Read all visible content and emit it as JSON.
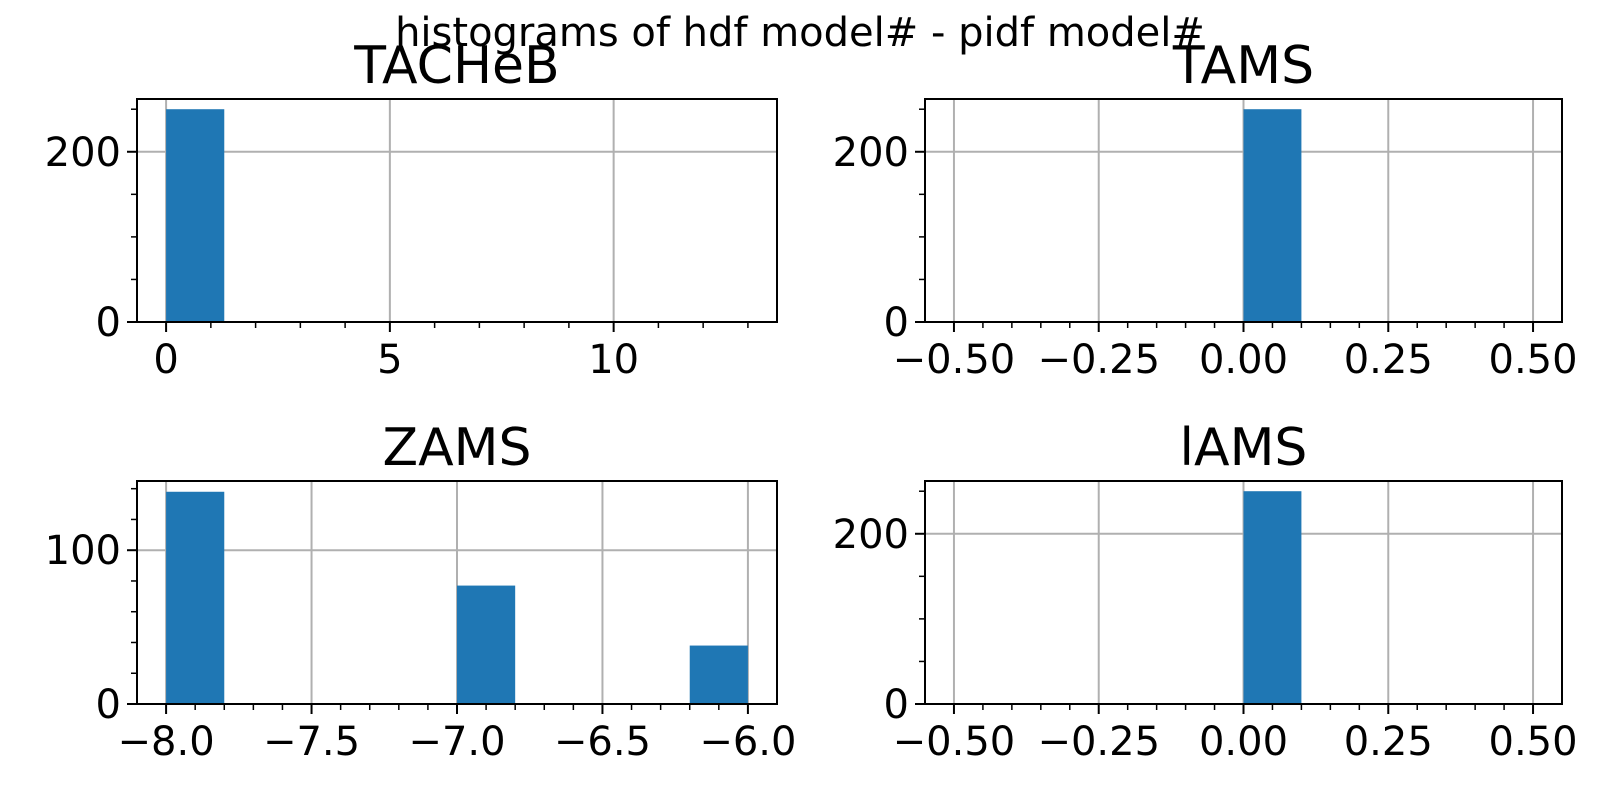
{
  "figure": {
    "title": "histograms of hdf model# - pidf model#"
  },
  "colors": {
    "bar": "#1f77b4",
    "grid": "#b0b0b0",
    "axis": "#000000"
  },
  "chart_data": [
    {
      "type": "bar",
      "title": "TACHeB",
      "xlim": [
        -0.65,
        13.65
      ],
      "ylim": [
        0,
        262
      ],
      "grid": true,
      "bars": [
        {
          "x0": 0.0,
          "x1": 1.3,
          "count": 250
        },
        {
          "x0": 1.3,
          "x1": 13.0,
          "count": 0
        }
      ],
      "xticks": [
        0,
        5,
        10
      ],
      "xtick_labels": [
        "0",
        "5",
        "10"
      ],
      "xminor": [
        1,
        2,
        3,
        4,
        6,
        7,
        8,
        9,
        11,
        12,
        13
      ],
      "yticks": [
        0,
        200
      ],
      "ytick_labels": [
        "0",
        "200"
      ],
      "yminor": [
        50,
        100,
        150,
        250
      ]
    },
    {
      "type": "bar",
      "title": "TAMS",
      "xlim": [
        -0.55,
        0.55
      ],
      "ylim": [
        0,
        262
      ],
      "grid": true,
      "bars": [
        {
          "x0": 0.0,
          "x1": 0.1,
          "count": 250
        }
      ],
      "xticks": [
        -0.5,
        -0.25,
        0.0,
        0.25,
        0.5
      ],
      "xtick_labels": [
        "−0.50",
        "−0.25",
        "0.00",
        "0.25",
        "0.50"
      ],
      "xminor": [
        -0.45,
        -0.4,
        -0.35,
        -0.3,
        -0.2,
        -0.15,
        -0.1,
        -0.05,
        0.05,
        0.1,
        0.15,
        0.2,
        0.3,
        0.35,
        0.4,
        0.45
      ],
      "yticks": [
        0,
        200
      ],
      "ytick_labels": [
        "0",
        "200"
      ],
      "yminor": [
        50,
        100,
        150,
        250
      ]
    },
    {
      "type": "bar",
      "title": "ZAMS",
      "xlim": [
        -8.1,
        -5.9
      ],
      "ylim": [
        0,
        145
      ],
      "grid": true,
      "bars": [
        {
          "x0": -8.0,
          "x1": -7.8,
          "count": 138
        },
        {
          "x0": -7.0,
          "x1": -6.8,
          "count": 77
        },
        {
          "x0": -6.2,
          "x1": -6.0,
          "count": 38
        }
      ],
      "xticks": [
        -8.0,
        -7.5,
        -7.0,
        -6.5,
        -6.0
      ],
      "xtick_labels": [
        "−8.0",
        "−7.5",
        "−7.0",
        "−6.5",
        "−6.0"
      ],
      "xminor": [
        -7.9,
        -7.8,
        -7.7,
        -7.6,
        -7.4,
        -7.3,
        -7.2,
        -7.1,
        -6.9,
        -6.8,
        -6.7,
        -6.6,
        -6.4,
        -6.3,
        -6.2,
        -6.1
      ],
      "yticks": [
        0,
        100
      ],
      "ytick_labels": [
        "0",
        "100"
      ],
      "yminor": [
        20,
        40,
        60,
        80,
        120,
        140
      ]
    },
    {
      "type": "bar",
      "title": "lAMS",
      "xlim": [
        -0.55,
        0.55
      ],
      "ylim": [
        0,
        262
      ],
      "grid": true,
      "bars": [
        {
          "x0": 0.0,
          "x1": 0.1,
          "count": 250
        }
      ],
      "xticks": [
        -0.5,
        -0.25,
        0.0,
        0.25,
        0.5
      ],
      "xtick_labels": [
        "−0.50",
        "−0.25",
        "0.00",
        "0.25",
        "0.50"
      ],
      "xminor": [
        -0.45,
        -0.4,
        -0.35,
        -0.3,
        -0.2,
        -0.15,
        -0.1,
        -0.05,
        0.05,
        0.1,
        0.15,
        0.2,
        0.3,
        0.35,
        0.4,
        0.45
      ],
      "yticks": [
        0,
        200
      ],
      "ytick_labels": [
        "0",
        "200"
      ],
      "yminor": [
        50,
        100,
        150,
        250
      ]
    }
  ]
}
